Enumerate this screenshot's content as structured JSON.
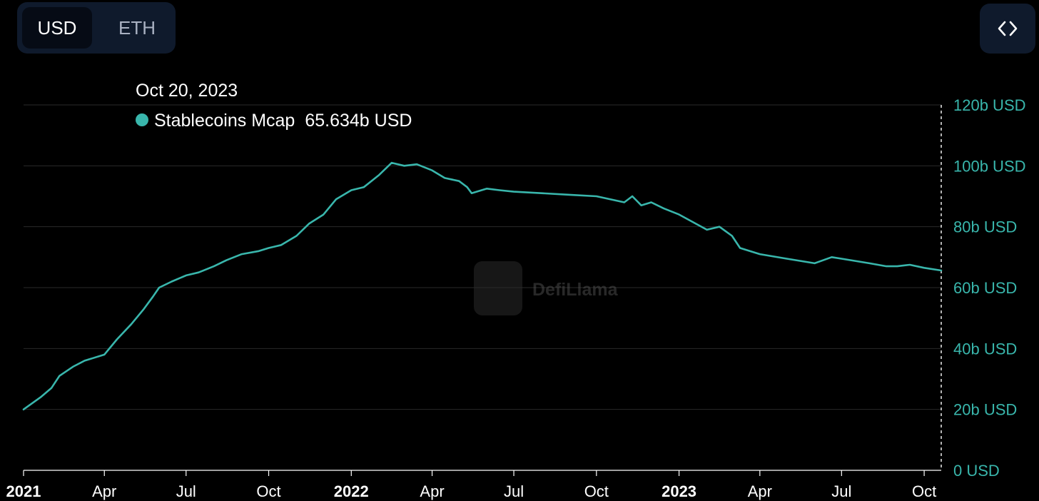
{
  "toggle": {
    "usd_label": "USD",
    "eth_label": "ETH",
    "selected": "USD"
  },
  "embed_icon": "code-brackets-icon",
  "tooltip": {
    "date": "Oct 20, 2023",
    "series_name": "Stablecoins Mcap",
    "value": "65.634b USD"
  },
  "watermark": {
    "text": "DefiLlama"
  },
  "colors": {
    "line": "#39b6ac",
    "axis_text": "#39b6ac",
    "background": "#000000",
    "grid": "#2a2a2a"
  },
  "chart_data": {
    "type": "line",
    "title": "",
    "xlabel": "",
    "ylabel": "",
    "series": [
      {
        "name": "Stablecoins Mcap",
        "x": [
          "2021-01-01",
          "2021-01-20",
          "2021-02-01",
          "2021-02-10",
          "2021-02-25",
          "2021-03-10",
          "2021-04-01",
          "2021-04-15",
          "2021-05-01",
          "2021-05-15",
          "2021-05-25",
          "2021-06-01",
          "2021-06-15",
          "2021-07-01",
          "2021-07-15",
          "2021-08-01",
          "2021-08-15",
          "2021-09-01",
          "2021-09-20",
          "2021-10-01",
          "2021-10-15",
          "2021-11-01",
          "2021-11-15",
          "2021-12-01",
          "2021-12-15",
          "2022-01-01",
          "2022-01-15",
          "2022-02-01",
          "2022-02-15",
          "2022-03-01",
          "2022-03-15",
          "2022-04-01",
          "2022-04-15",
          "2022-05-01",
          "2022-05-10",
          "2022-05-15",
          "2022-06-01",
          "2022-06-15",
          "2022-07-01",
          "2022-08-01",
          "2022-09-01",
          "2022-10-01",
          "2022-11-01",
          "2022-11-10",
          "2022-11-20",
          "2022-12-01",
          "2022-12-15",
          "2023-01-01",
          "2023-02-01",
          "2023-02-15",
          "2023-03-01",
          "2023-03-10",
          "2023-04-01",
          "2023-05-01",
          "2023-06-01",
          "2023-06-20",
          "2023-07-01",
          "2023-08-01",
          "2023-08-20",
          "2023-09-01",
          "2023-09-15",
          "2023-10-01",
          "2023-10-20"
        ],
        "values": [
          20,
          24,
          27,
          31,
          34,
          36,
          38,
          43,
          48,
          53,
          57,
          60,
          62,
          64,
          65,
          67,
          69,
          71,
          72,
          73,
          74,
          77,
          81,
          84,
          89,
          92,
          93,
          97,
          101,
          100,
          100.5,
          98.5,
          96,
          95,
          93,
          91,
          92.5,
          92,
          91.5,
          91,
          90.5,
          90,
          88,
          90,
          87,
          88,
          86,
          84,
          79,
          80,
          77,
          73,
          71,
          69.5,
          68,
          70,
          69.5,
          68,
          67,
          67,
          67.5,
          66.5,
          65.634
        ]
      }
    ],
    "ylim": [
      0,
      120
    ],
    "y_ticks": [
      "0 USD",
      "20b USD",
      "40b USD",
      "60b USD",
      "80b USD",
      "100b USD",
      "120b USD"
    ],
    "y_tick_values": [
      0,
      20,
      40,
      60,
      80,
      100,
      120
    ],
    "x_ticks": [
      {
        "label": "2021",
        "date": "2021-01-01",
        "bold": true
      },
      {
        "label": "Apr",
        "date": "2021-04-01",
        "bold": false
      },
      {
        "label": "Jul",
        "date": "2021-07-01",
        "bold": false
      },
      {
        "label": "Oct",
        "date": "2021-10-01",
        "bold": false
      },
      {
        "label": "2022",
        "date": "2022-01-01",
        "bold": true
      },
      {
        "label": "Apr",
        "date": "2022-04-01",
        "bold": false
      },
      {
        "label": "Jul",
        "date": "2022-07-01",
        "bold": false
      },
      {
        "label": "Oct",
        "date": "2022-10-01",
        "bold": false
      },
      {
        "label": "2023",
        "date": "2023-01-01",
        "bold": true
      },
      {
        "label": "Apr",
        "date": "2023-04-01",
        "bold": false
      },
      {
        "label": "Jul",
        "date": "2023-07-01",
        "bold": false
      },
      {
        "label": "Oct",
        "date": "2023-10-01",
        "bold": false
      }
    ],
    "xlim": [
      "2021-01-01",
      "2023-10-20"
    ],
    "grid": true,
    "y_axis_side": "right",
    "crosshair_date": "2023-10-20"
  }
}
